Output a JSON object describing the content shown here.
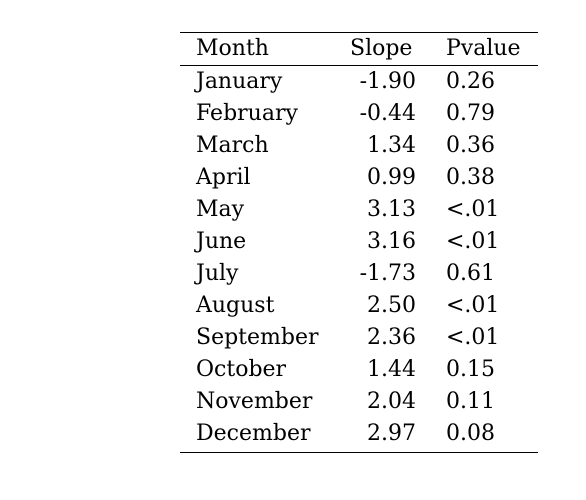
{
  "table": {
    "headers": {
      "month": "Month",
      "slope": "Slope",
      "pvalue": "Pvalue"
    },
    "rows": [
      {
        "month": "January",
        "slope": "-1.90",
        "pvalue": "0.26"
      },
      {
        "month": "February",
        "slope": "-0.44",
        "pvalue": "0.79"
      },
      {
        "month": "March",
        "slope": "1.34",
        "pvalue": "0.36"
      },
      {
        "month": "April",
        "slope": "0.99",
        "pvalue": "0.38"
      },
      {
        "month": "May",
        "slope": "3.13",
        "pvalue": "<.01"
      },
      {
        "month": "June",
        "slope": "3.16",
        "pvalue": "<.01"
      },
      {
        "month": "July",
        "slope": "-1.73",
        "pvalue": "0.61"
      },
      {
        "month": "August",
        "slope": "2.50",
        "pvalue": "<.01"
      },
      {
        "month": "September",
        "slope": "2.36",
        "pvalue": "<.01"
      },
      {
        "month": "October",
        "slope": "1.44",
        "pvalue": "0.15"
      },
      {
        "month": "November",
        "slope": "2.04",
        "pvalue": "0.11"
      },
      {
        "month": "December",
        "slope": "2.97",
        "pvalue": "0.08"
      }
    ]
  }
}
